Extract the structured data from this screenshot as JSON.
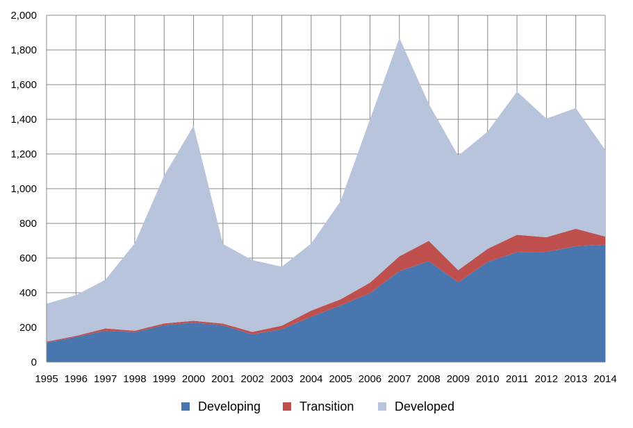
{
  "chart_data": {
    "type": "area",
    "stacked": true,
    "title": "",
    "xlabel": "",
    "ylabel": "",
    "x": [
      "1995",
      "1996",
      "1997",
      "1998",
      "1999",
      "2000",
      "2001",
      "2002",
      "2003",
      "2004",
      "2005",
      "2006",
      "2007",
      "2008",
      "2009",
      "2010",
      "2011",
      "2012",
      "2013",
      "2014"
    ],
    "ylim": [
      0,
      2000
    ],
    "yticks": [
      0,
      200,
      400,
      600,
      800,
      1000,
      1200,
      1400,
      1600,
      1800,
      2000
    ],
    "ytick_labels": [
      "0",
      "200",
      "400",
      "600",
      "800",
      "1,000",
      "1,200",
      "1,400",
      "1,600",
      "1,800",
      "2,000"
    ],
    "grid": true,
    "legend_position": "bottom",
    "series": [
      {
        "name": "Developing",
        "color": "#4a76af",
        "values": [
          113,
          145,
          181,
          173,
          213,
          228,
          212,
          160,
          190,
          262,
          327,
          398,
          525,
          582,
          460,
          578,
          634,
          636,
          668,
          677
        ]
      },
      {
        "name": "Transition",
        "color": "#c0504d",
        "values": [
          5,
          6,
          13,
          8,
          10,
          10,
          10,
          14,
          20,
          35,
          35,
          60,
          85,
          117,
          70,
          75,
          100,
          84,
          101,
          47
        ]
      },
      {
        "name": "Developed",
        "color": "#b8c4dc",
        "values": [
          219,
          235,
          281,
          504,
          853,
          1125,
          459,
          414,
          340,
          387,
          566,
          942,
          1260,
          790,
          660,
          676,
          826,
          684,
          696,
          500
        ]
      }
    ]
  }
}
